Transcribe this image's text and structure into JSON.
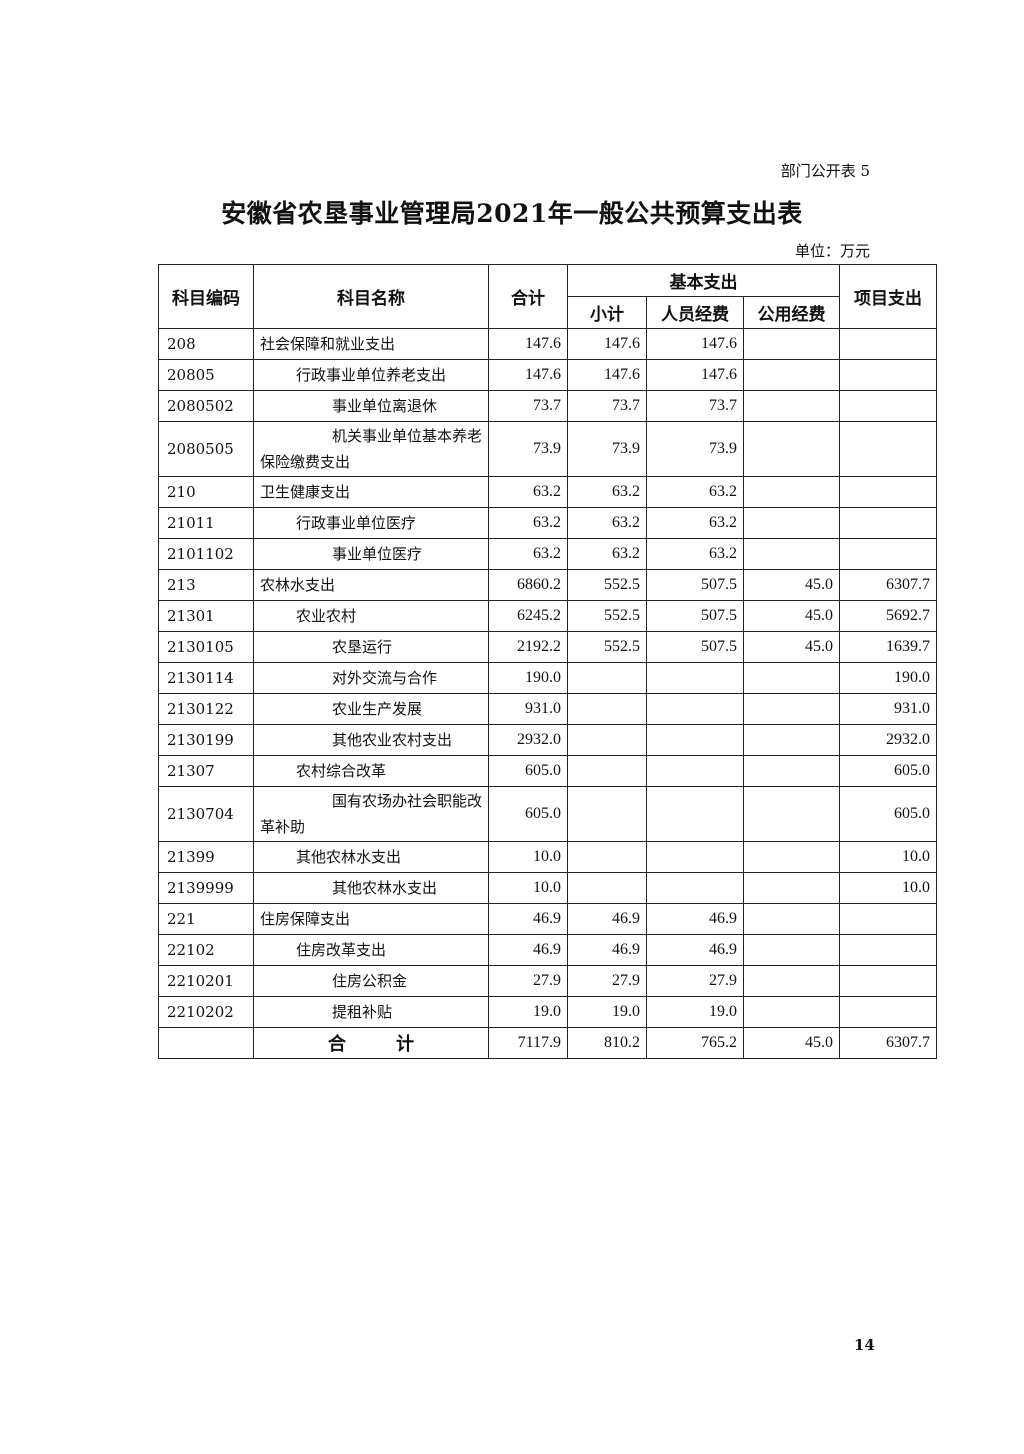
{
  "doc_tag": "部门公开表 5",
  "title": "安徽省农垦事业管理局2021年一般公共预算支出表",
  "unit": "单位：万元",
  "headers": {
    "code": "科目编码",
    "name": "科目名称",
    "total": "合计",
    "basic": "基本支出",
    "subtotal": "小计",
    "personnel": "人员经费",
    "public": "公用经费",
    "project": "项目支出"
  },
  "rows": [
    {
      "code": "208",
      "name": "社会保障和就业支出",
      "level": 0,
      "values": [
        "147.6",
        "147.6",
        "147.6",
        "",
        ""
      ]
    },
    {
      "code": "20805",
      "name": "行政事业单位养老支出",
      "level": 1,
      "values": [
        "147.6",
        "147.6",
        "147.6",
        "",
        ""
      ]
    },
    {
      "code": "2080502",
      "name": "事业单位离退休",
      "level": 2,
      "values": [
        "73.7",
        "73.7",
        "73.7",
        "",
        ""
      ]
    },
    {
      "code": "2080505",
      "name": "机关事业单位基本养老保险缴费支出",
      "level": 2,
      "two_line": true,
      "values": [
        "73.9",
        "73.9",
        "73.9",
        "",
        ""
      ]
    },
    {
      "code": "210",
      "name": "卫生健康支出",
      "level": 0,
      "values": [
        "63.2",
        "63.2",
        "63.2",
        "",
        ""
      ]
    },
    {
      "code": "21011",
      "name": "行政事业单位医疗",
      "level": 1,
      "values": [
        "63.2",
        "63.2",
        "63.2",
        "",
        ""
      ]
    },
    {
      "code": "2101102",
      "name": "事业单位医疗",
      "level": 2,
      "values": [
        "63.2",
        "63.2",
        "63.2",
        "",
        ""
      ]
    },
    {
      "code": "213",
      "name": "农林水支出",
      "level": 0,
      "values": [
        "6860.2",
        "552.5",
        "507.5",
        "45.0",
        "6307.7"
      ]
    },
    {
      "code": "21301",
      "name": "农业农村",
      "level": 1,
      "values": [
        "6245.2",
        "552.5",
        "507.5",
        "45.0",
        "5692.7"
      ]
    },
    {
      "code": "2130105",
      "name": "农垦运行",
      "level": 2,
      "values": [
        "2192.2",
        "552.5",
        "507.5",
        "45.0",
        "1639.7"
      ]
    },
    {
      "code": "2130114",
      "name": "对外交流与合作",
      "level": 2,
      "values": [
        "190.0",
        "",
        "",
        "",
        "190.0"
      ]
    },
    {
      "code": "2130122",
      "name": "农业生产发展",
      "level": 2,
      "values": [
        "931.0",
        "",
        "",
        "",
        "931.0"
      ]
    },
    {
      "code": "2130199",
      "name": "其他农业农村支出",
      "level": 2,
      "values": [
        "2932.0",
        "",
        "",
        "",
        "2932.0"
      ]
    },
    {
      "code": "21307",
      "name": "农村综合改革",
      "level": 1,
      "values": [
        "605.0",
        "",
        "",
        "",
        "605.0"
      ]
    },
    {
      "code": "2130704",
      "name": "国有农场办社会职能改革补助",
      "level": 2,
      "two_line": true,
      "values": [
        "605.0",
        "",
        "",
        "",
        "605.0"
      ]
    },
    {
      "code": "21399",
      "name": "其他农林水支出",
      "level": 1,
      "values": [
        "10.0",
        "",
        "",
        "",
        "10.0"
      ]
    },
    {
      "code": "2139999",
      "name": "其他农林水支出",
      "level": 2,
      "values": [
        "10.0",
        "",
        "",
        "",
        "10.0"
      ]
    },
    {
      "code": "221",
      "name": "住房保障支出",
      "level": 0,
      "values": [
        "46.9",
        "46.9",
        "46.9",
        "",
        ""
      ]
    },
    {
      "code": "22102",
      "name": "住房改革支出",
      "level": 1,
      "values": [
        "46.9",
        "46.9",
        "46.9",
        "",
        ""
      ]
    },
    {
      "code": "2210201",
      "name": "住房公积金",
      "level": 2,
      "values": [
        "27.9",
        "27.9",
        "27.9",
        "",
        ""
      ]
    },
    {
      "code": "2210202",
      "name": "提租补贴",
      "level": 2,
      "values": [
        "19.0",
        "19.0",
        "19.0",
        "",
        ""
      ]
    }
  ],
  "total_row": {
    "label": "合计",
    "values": [
      "7117.9",
      "810.2",
      "765.2",
      "45.0",
      "6307.7"
    ]
  },
  "page_number": "14"
}
